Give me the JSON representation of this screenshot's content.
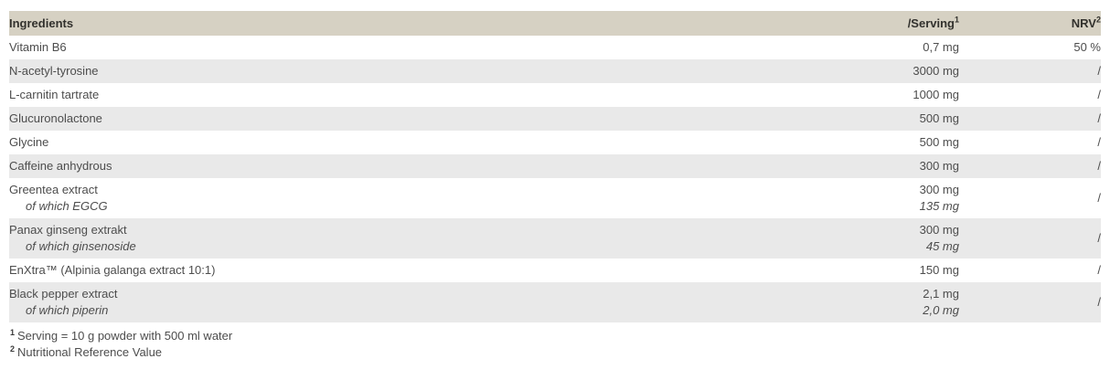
{
  "table": {
    "columns": [
      {
        "label": "Ingredients",
        "sup": ""
      },
      {
        "label": "/Serving",
        "sup": "1"
      },
      {
        "label": "NRV",
        "sup": "2"
      }
    ],
    "rows": [
      {
        "name": "Vitamin B6",
        "sub_name": "",
        "serving": "0,7 mg",
        "sub_serving": "",
        "nrv": "50 %"
      },
      {
        "name": "N-acetyl-tyrosine",
        "sub_name": "",
        "serving": "3000 mg",
        "sub_serving": "",
        "nrv": "/"
      },
      {
        "name": "L-carnitin tartrate",
        "sub_name": "",
        "serving": "1000 mg",
        "sub_serving": "",
        "nrv": "/"
      },
      {
        "name": "Glucuronolactone",
        "sub_name": "",
        "serving": "500 mg",
        "sub_serving": "",
        "nrv": "/"
      },
      {
        "name": "Glycine",
        "sub_name": "",
        "serving": "500 mg",
        "sub_serving": "",
        "nrv": "/"
      },
      {
        "name": "Caffeine anhydrous",
        "sub_name": "",
        "serving": "300 mg",
        "sub_serving": "",
        "nrv": "/"
      },
      {
        "name": "Greentea extract",
        "sub_name": "of which EGCG",
        "serving": "300 mg",
        "sub_serving": "135 mg",
        "nrv": "/"
      },
      {
        "name": "Panax ginseng extrakt",
        "sub_name": "of which ginsenoside",
        "serving": "300 mg",
        "sub_serving": "45 mg",
        "nrv": "/"
      },
      {
        "name": "EnXtra™ (Alpinia galanga extract 10:1)",
        "sub_name": "",
        "serving": "150 mg",
        "sub_serving": "",
        "nrv": "/"
      },
      {
        "name": "Black pepper extract",
        "sub_name": "of which piperin",
        "serving": "2,1 mg",
        "sub_serving": "2,0 mg",
        "nrv": "/"
      }
    ]
  },
  "footnotes": [
    {
      "marker": "1",
      "text": "Serving = 10 g powder with 500 ml water"
    },
    {
      "marker": "2",
      "text": "Nutritional Reference Value"
    }
  ],
  "colors": {
    "header_bg": "#d6d1c3",
    "stripe_bg": "#e9e9e9",
    "header_text": "#32312d",
    "body_text": "#4d4d4d"
  }
}
